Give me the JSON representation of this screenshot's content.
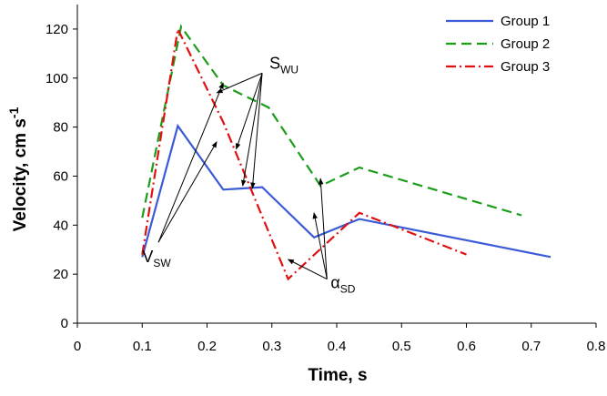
{
  "chart_data": {
    "type": "line",
    "title": "",
    "xlabel": "Time, s",
    "ylabel": "Velocity, cm s",
    "ylabel_superscript": "-1",
    "xlim": [
      0,
      0.8
    ],
    "ylim": [
      0,
      130
    ],
    "x_ticks": [
      "0",
      "0.1",
      "0.2",
      "0.3",
      "0.4",
      "0.5",
      "0.6",
      "0.7",
      "0.8"
    ],
    "y_ticks": [
      "0",
      "20",
      "40",
      "60",
      "80",
      "100",
      "120"
    ],
    "grid": false,
    "legend_position": "top-right",
    "series": [
      {
        "name": "Group 1",
        "color": "#3b5bd6",
        "style": "solid",
        "points": [
          [
            0.1,
            27
          ],
          [
            0.155,
            80.5
          ],
          [
            0.225,
            54.5
          ],
          [
            0.285,
            55.5
          ],
          [
            0.365,
            35
          ],
          [
            0.435,
            42.5
          ],
          [
            0.73,
            27
          ]
        ]
      },
      {
        "name": "Group 2",
        "color": "#1a9e1a",
        "style": "dashed",
        "points": [
          [
            0.1,
            43
          ],
          [
            0.16,
            121
          ],
          [
            0.225,
            97
          ],
          [
            0.295,
            88
          ],
          [
            0.375,
            56
          ],
          [
            0.435,
            63.5
          ],
          [
            0.685,
            44
          ]
        ]
      },
      {
        "name": "Group 3",
        "color": "#e01010",
        "style": "dashdot",
        "points": [
          [
            0.1,
            28
          ],
          [
            0.155,
            120
          ],
          [
            0.225,
            82
          ],
          [
            0.325,
            18
          ],
          [
            0.435,
            45
          ],
          [
            0.6,
            28
          ]
        ]
      }
    ],
    "annotations": [
      {
        "label": "S",
        "subscript": "WU",
        "anchor": [
          0.285,
          102
        ],
        "targets": [
          [
            0.215,
            94
          ],
          [
            0.245,
            71
          ],
          [
            0.255,
            56
          ],
          [
            0.27,
            55
          ]
        ]
      },
      {
        "label": "V",
        "subscript": "SW",
        "anchor": [
          0.125,
          33
        ],
        "targets": [
          [
            0.225,
            98
          ],
          [
            0.215,
            74
          ]
        ]
      },
      {
        "label": "α",
        "subscript": "SD",
        "anchor": [
          0.385,
          18
        ],
        "targets": [
          [
            0.325,
            26
          ],
          [
            0.365,
            45
          ],
          [
            0.375,
            59
          ]
        ]
      }
    ]
  }
}
